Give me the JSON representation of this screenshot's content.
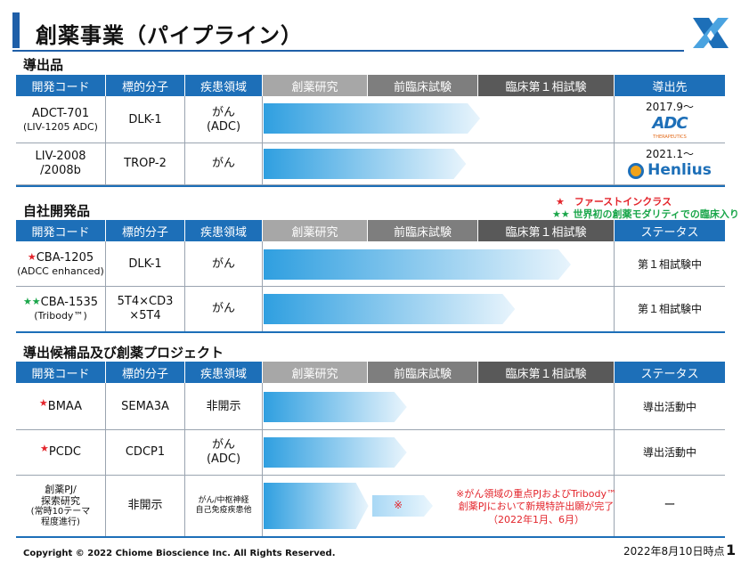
{
  "title": "創薬事業（パイプライン）",
  "header_columns": [
    "開発コード",
    "標的分子",
    "疾患領域",
    "創薬研究",
    "前臨床試験",
    "臨床第１相試験"
  ],
  "section1": {
    "heading": "導出品",
    "last_col": "導出先",
    "rows": [
      {
        "code": "ADCT-701",
        "code_sub": "(LIV-1205 ADC)",
        "target": "DLK-1",
        "disease": "がん",
        "disease_sub": "(ADC)",
        "partner_date": "2017.9～",
        "partner_logo": "ADC",
        "partner_logo_sub": "THERAPEUTICS",
        "progress": 0.62
      },
      {
        "code": "LIV-2008",
        "code_sub": "/2008b",
        "target": "TROP-2",
        "disease": "がん",
        "disease_sub": "",
        "partner_date": "2021.1～",
        "partner_logo": "Henlius",
        "partner_logo_sub": "",
        "progress": 0.58
      }
    ]
  },
  "legend": {
    "red": "★　ファーストインクラス",
    "green": "★★ 世界初の創薬モダリティでの臨床入り"
  },
  "section2": {
    "heading": "自社開発品",
    "last_col": "ステータス",
    "rows": [
      {
        "star": "★",
        "star_color": "red",
        "code": "CBA-1205",
        "code_sub": "(ADCC enhanced)",
        "target": "DLK-1",
        "target_sub": "",
        "disease": "がん",
        "status": "第１相試験中",
        "progress": 0.88
      },
      {
        "star": "★★",
        "star_color": "green",
        "code": "CBA-1535",
        "code_sub": "(Tribody™)",
        "target": "5T4×CD3",
        "target_sub": "×5T4",
        "disease": "がん",
        "status": "第１相試験中",
        "progress": 0.72
      }
    ]
  },
  "section3": {
    "heading": "導出候補品及び創薬プロジェクト",
    "last_col": "ステータス",
    "rows": [
      {
        "star": "★",
        "code": "BMAA",
        "code_sub": "",
        "target": "SEMA3A",
        "disease": "非開示",
        "disease_sub": "",
        "status": "導出活動中",
        "progress": 0.41
      },
      {
        "star": "★",
        "code": "PCDC",
        "code_sub": "",
        "target": "CDCP1",
        "disease": "がん",
        "disease_sub": "(ADC)",
        "status": "導出活動中",
        "progress": 0.41
      },
      {
        "code": "創薬PJ/",
        "code_sub": "探索研究",
        "code_sub2": "(常時10テーマ",
        "code_sub3": "程度進行)",
        "target": "非開示",
        "disease": "がん/中枢神経",
        "disease_sub": "自己免疫疾患他",
        "status": "ー",
        "progress": 0.3
      }
    ],
    "note_mark": "※",
    "note_line1": "※がん領域の重点PJおよびTribody™",
    "note_line2": "創薬PJにおいて新規特許出願が完了",
    "note_line3": "（2022年1月、6月）"
  },
  "footer": {
    "copyright": "Copyright © 2022 Chiome Bioscience Inc. All Rights Reserved.",
    "date": "2022年8月10日時点",
    "page": "1"
  },
  "colors": {
    "accent": "#1d6fb8",
    "arrow_start": "#2f9fe0",
    "arrow_end": "#e8f4fc",
    "red": "#e3242b",
    "green": "#1aa64a"
  }
}
